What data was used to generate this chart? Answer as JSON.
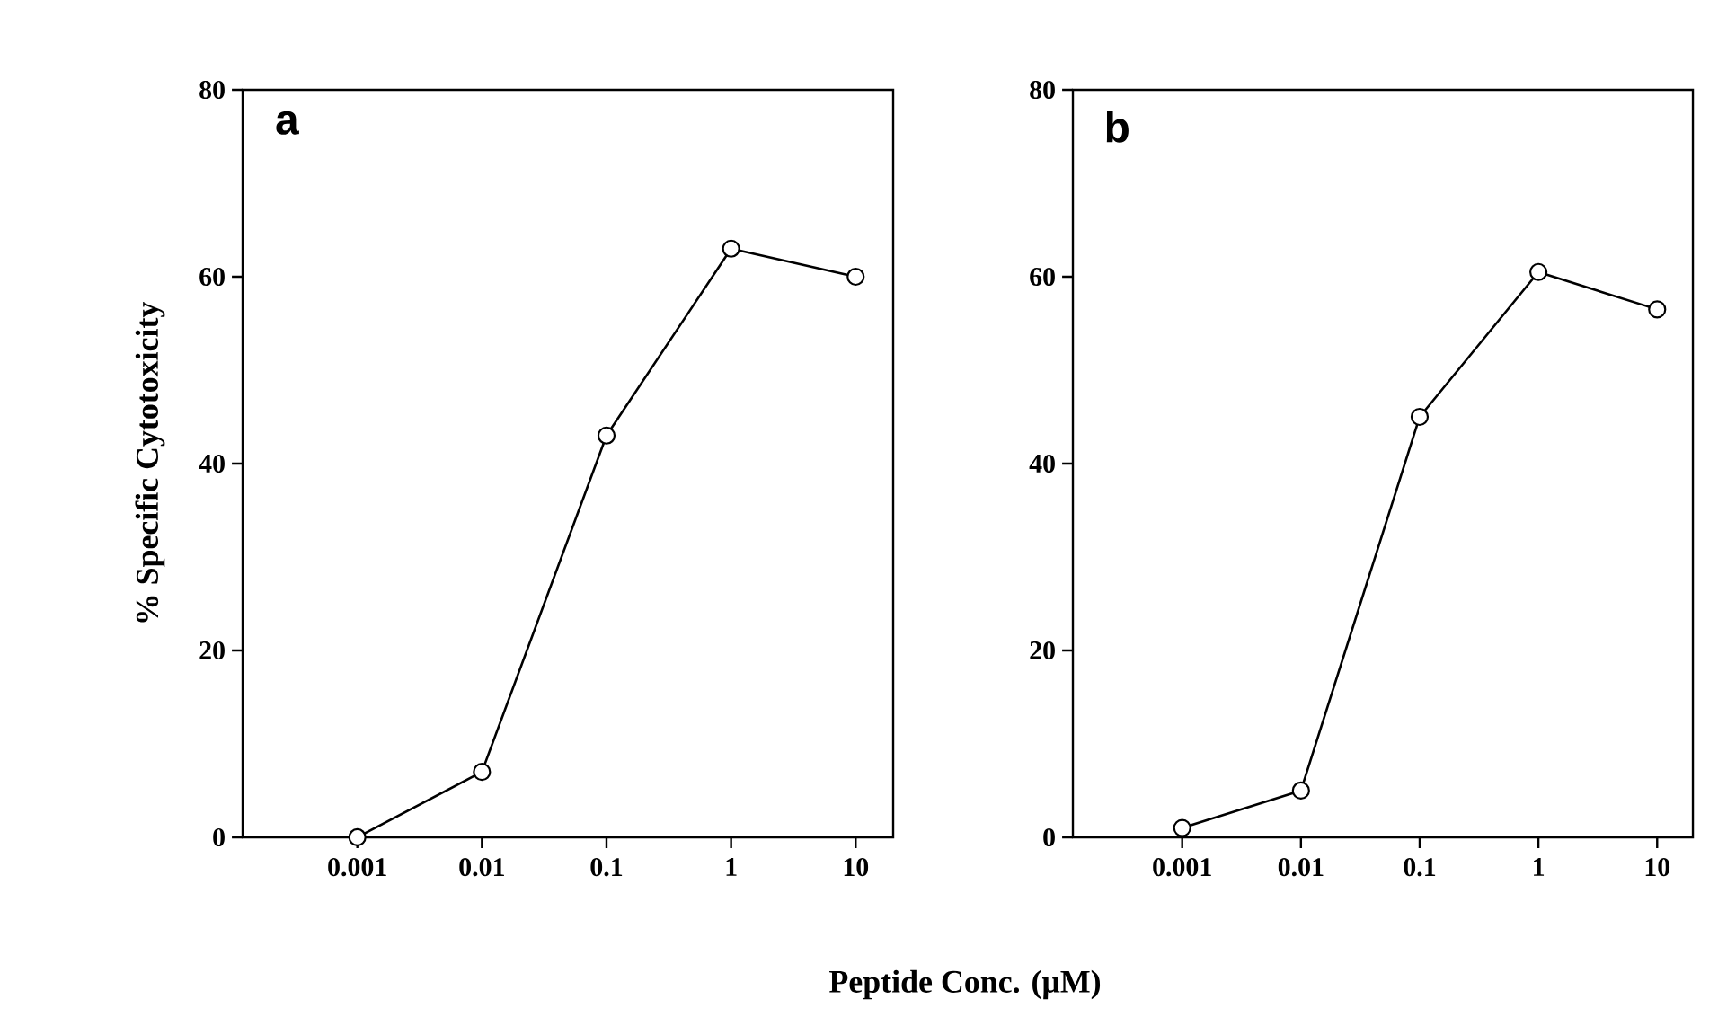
{
  "chart_data": [
    {
      "type": "line",
      "ylabel": "% Specific Cytotoxicity",
      "xlabel": "Peptide Conc. (μM)",
      "annotations": [
        "a"
      ],
      "x": [
        0.001,
        0.01,
        0.1,
        1,
        10
      ],
      "values": [
        0,
        7,
        43,
        63,
        60
      ],
      "color": "#000000",
      "marker": "circle",
      "line_style": "solid",
      "log": "x",
      "xlim": [
        0.00012,
        20
      ],
      "xticks": [
        0.001,
        0.01,
        0.1,
        1,
        10
      ],
      "ylim": [
        0,
        80
      ],
      "yticks": [
        0,
        20,
        40,
        60,
        80
      ]
    },
    {
      "type": "line",
      "annotations": [
        "b"
      ],
      "x": [
        0.001,
        0.01,
        0.1,
        1,
        10
      ],
      "values": [
        1,
        5,
        45,
        60.5,
        56.5
      ],
      "color": "#000000",
      "marker": "circle",
      "line_style": "solid",
      "log": "x",
      "xlim": [
        0.00012,
        20
      ],
      "xticks": [
        0.001,
        0.01,
        0.1,
        1,
        10
      ],
      "ylim": [
        0,
        80
      ],
      "yticks": [
        0,
        20,
        40,
        60,
        80
      ]
    }
  ]
}
